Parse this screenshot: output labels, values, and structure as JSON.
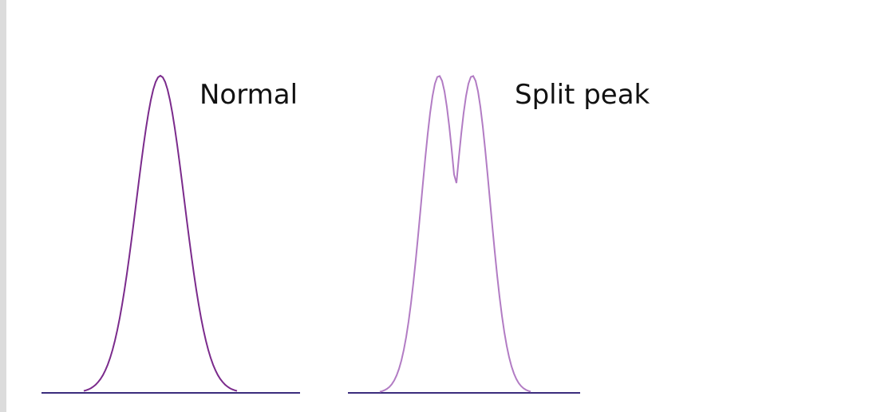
{
  "diagrams": [
    {
      "label": "Normal"
    },
    {
      "label": "Split peak"
    }
  ]
}
